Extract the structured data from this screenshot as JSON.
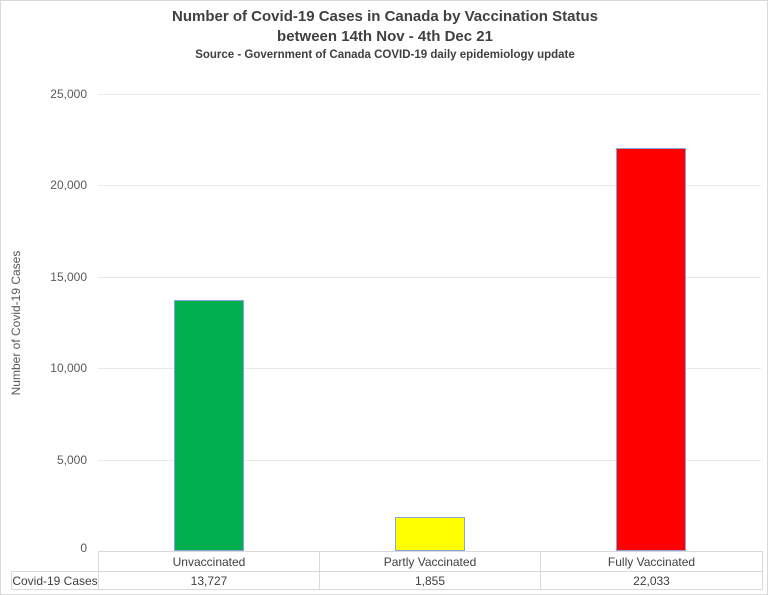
{
  "title": {
    "line1": "Number of Covid-19 Cases in Canada by Vaccination Status",
    "line2": "between 14th Nov - 4th Dec 21",
    "source": "Source - Government of Canada COVID-19 daily epidemiology update"
  },
  "chart_data": {
    "type": "bar",
    "title": "Number of Covid-19 Cases in Canada by Vaccination Status between 14th Nov - 4th Dec 21",
    "subtitle": "Source - Government of Canada COVID-19 daily epidemiology update",
    "categories": [
      "Unvaccinated",
      "Partly Vaccinated",
      "Fully Vaccinated"
    ],
    "values": [
      13727,
      1855,
      22033
    ],
    "values_formatted": [
      "13,727",
      "1,855",
      "22,033"
    ],
    "bar_colors": [
      "#00B050",
      "#FFFF00",
      "#FF0000"
    ],
    "xlabel": "",
    "ylabel": "Number of Covid-19 Cases",
    "ylim": [
      0,
      25000
    ],
    "ytick_interval": 5000,
    "ytick_labels": [
      "0",
      "5,000",
      "10,000",
      "15,000",
      "20,000",
      "25,000"
    ],
    "grid": true,
    "legend": false,
    "data_table": {
      "row_label": "Covid-19 Cases"
    }
  },
  "colors": {
    "grid": "#E9E9E9",
    "table_border": "#D9D9D9",
    "bar_border": "#8BA3D6",
    "title_text": "#404040",
    "axis_text": "#595959"
  }
}
